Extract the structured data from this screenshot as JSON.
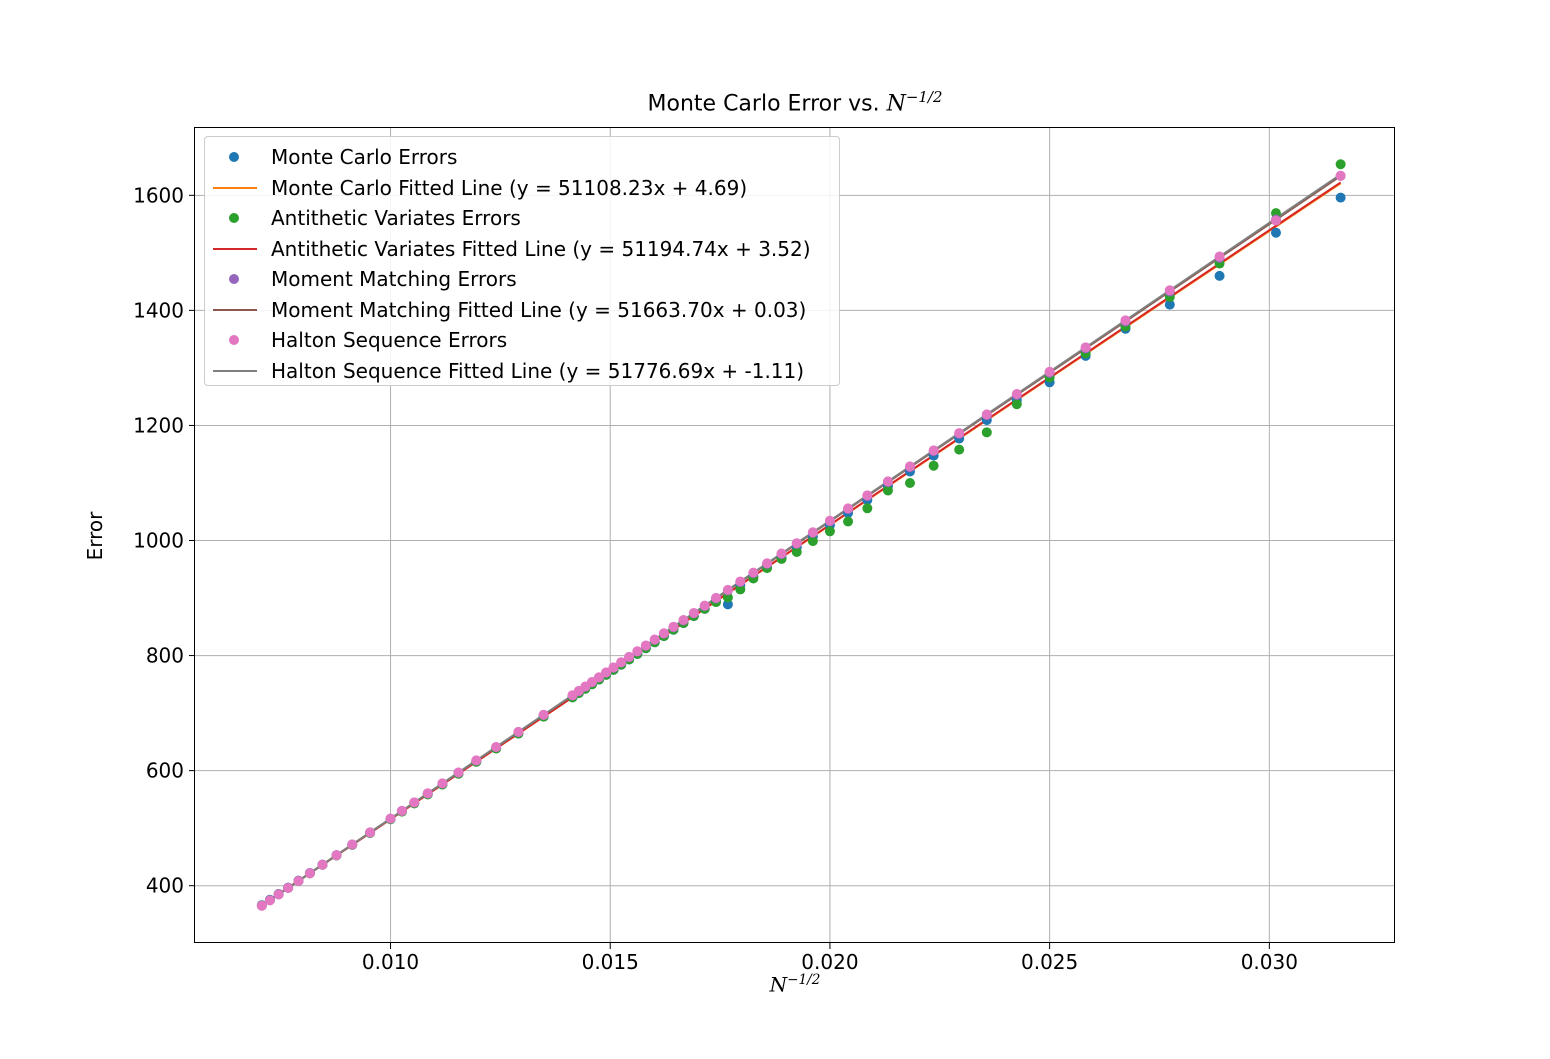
{
  "chart_data": {
    "type": "scatter",
    "title_prefix": "Monte Carlo Error vs. ",
    "title_math": "N",
    "title_exp": "−1/2",
    "xlabel_math": "N",
    "xlabel_exp": "−1/2",
    "ylabel": "Error",
    "xlim": [
      0.00555,
      0.03286
    ],
    "ylim": [
      300.4,
      1717.0
    ],
    "xticks": [
      0.01,
      0.015,
      0.02,
      0.025,
      0.03
    ],
    "xtick_labels": [
      "0.010",
      "0.015",
      "0.020",
      "0.025",
      "0.030"
    ],
    "yticks": [
      400,
      600,
      800,
      1000,
      1200,
      1400,
      1600
    ],
    "ytick_labels": [
      "400",
      "600",
      "800",
      "1000",
      "1200",
      "1400",
      "1600"
    ],
    "grid": true,
    "legend_position": "upper-left",
    "n_values": [
      1000,
      1100,
      1200,
      1300,
      1400,
      1500,
      1600,
      1700,
      1800,
      1900,
      2000,
      2100,
      2200,
      2300,
      2400,
      2500,
      2600,
      2700,
      2800,
      2900,
      3000,
      3100,
      3200,
      3300,
      3400,
      3500,
      3600,
      3700,
      3800,
      3900,
      4000,
      4100,
      4200,
      4300,
      4400,
      4500,
      4600,
      4700,
      4800,
      4900,
      5000,
      5500,
      6000,
      6500,
      7000,
      7500,
      8000,
      8500,
      9000,
      9500,
      10000,
      11000,
      12000,
      13000,
      14000,
      15000,
      16000,
      17000,
      18000,
      19000,
      20000
    ],
    "series": [
      {
        "name": "Monte Carlo Errors",
        "kind": "points",
        "color": "#1f77b4",
        "slope": 51108.23,
        "intercept": 4.69,
        "overrides": {
          "0": 1596,
          "1": 1535,
          "2": 1460,
          "3": 1410,
          "4": 1368,
          "5": 1321,
          "6": 1275,
          "22": 889
        }
      },
      {
        "name": "Monte Carlo Fitted Line (y = 51108.23x + 4.69)",
        "kind": "line",
        "color": "#ff7f0e",
        "slope": 51108.23,
        "intercept": 4.69
      },
      {
        "name": "Antithetic Variates Errors",
        "kind": "points",
        "color": "#2ca02c",
        "slope": 51194.74,
        "intercept": 3.52,
        "overrides": {
          "0": 1654,
          "1": 1569,
          "7": 1237,
          "8": 1188,
          "9": 1158,
          "10": 1130,
          "11": 1100,
          "12": 1087,
          "13": 1056,
          "14": 1033,
          "15": 1016,
          "16": 999,
          "17": 980,
          "18": 968,
          "19": 952,
          "20": 934,
          "21": 915,
          "22": 901,
          "23": 893
        }
      },
      {
        "name": "Antithetic Variates Fitted Line (y = 51194.74x + 3.52)",
        "kind": "line",
        "color": "#d62728",
        "slope": 51194.74,
        "intercept": 3.52
      },
      {
        "name": "Moment Matching Errors",
        "kind": "points",
        "color": "#9467bd",
        "slope": 51663.7,
        "intercept": 0.03,
        "overrides": {}
      },
      {
        "name": "Moment Matching Fitted Line (y = 51663.70x + 0.03)",
        "kind": "line",
        "color": "#8c564b",
        "slope": 51663.7,
        "intercept": 0.03
      },
      {
        "name": "Halton Sequence Errors",
        "kind": "points",
        "color": "#e377c2",
        "slope": 51776.69,
        "intercept": -1.11,
        "overrides": {
          "0": 1634,
          "1": 1556
        }
      },
      {
        "name": "Halton Sequence Fitted Line (y = 51776.69x + -1.11)",
        "kind": "line",
        "color": "#7f7f7f",
        "slope": 51776.69,
        "intercept": -1.11
      }
    ]
  }
}
